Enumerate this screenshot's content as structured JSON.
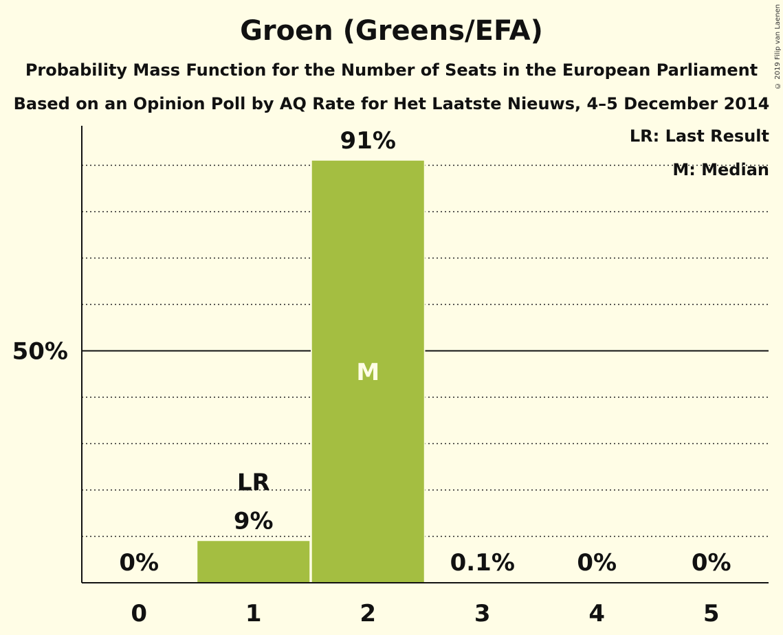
{
  "title": "Groen (Greens/EFA)",
  "subtitle1": "Probability Mass Function for the Number of Seats in the European Parliament",
  "subtitle2": "Based on an Opinion Poll by AQ Rate for Het Laatste Nieuws, 4–5 December 2014",
  "copyright": "© 2019 Filip van Laenen",
  "legend": {
    "lr": "LR: Last Result",
    "m": "M: Median"
  },
  "colors": {
    "bar": "#a4be41",
    "background": "#fffde6",
    "median_label": "#fffde6"
  },
  "chart_data": {
    "type": "bar",
    "categories": [
      "0",
      "1",
      "2",
      "3",
      "4",
      "5"
    ],
    "values": [
      0,
      9,
      91,
      0.1,
      0,
      0
    ],
    "value_labels": [
      "0%",
      "9%",
      "91%",
      "0.1%",
      "0%",
      "0%"
    ],
    "ylim": [
      0,
      100
    ],
    "y_ticks": [
      {
        "value": 50,
        "label": "50%"
      }
    ],
    "gridlines_dotted_every": 10,
    "last_result_category": "1",
    "last_result_marker": "LR",
    "median_category": "2",
    "median_marker": "M",
    "legend_position": "top-right"
  }
}
